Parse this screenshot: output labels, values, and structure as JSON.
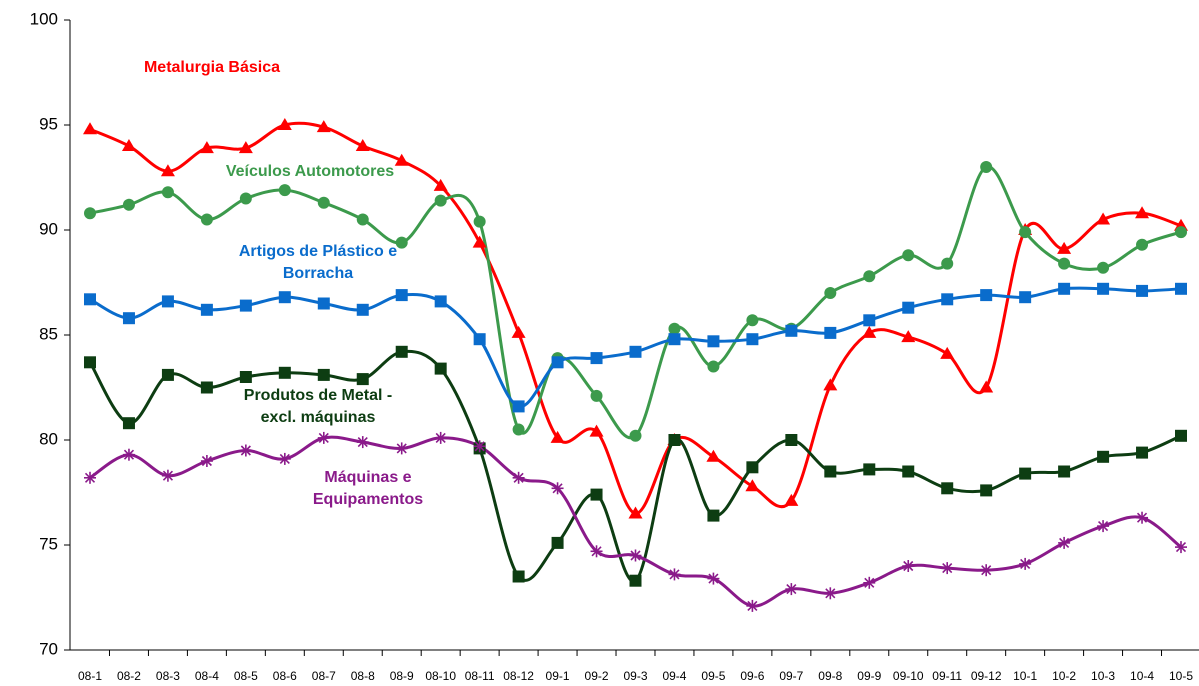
{
  "chart_data": {
    "type": "line",
    "categories": [
      "08-1",
      "08-2",
      "08-3",
      "08-4",
      "08-5",
      "08-6",
      "08-7",
      "08-8",
      "08-9",
      "08-10",
      "08-11",
      "08-12",
      "09-1",
      "09-2",
      "09-3",
      "09-4",
      "09-5",
      "09-6",
      "09-7",
      "09-8",
      "09-9",
      "09-10",
      "09-11",
      "09-12",
      "10-1",
      "10-2",
      "10-3",
      "10-4",
      "10-5"
    ],
    "ylim": [
      70,
      100
    ],
    "yticks": [
      70,
      75,
      80,
      85,
      90,
      95,
      100
    ],
    "grid": false,
    "smooth": true,
    "series": [
      {
        "name": "Metalurgia Básica",
        "color": "#ff0000",
        "marker": "triangle",
        "values": [
          94.8,
          94.0,
          92.8,
          93.9,
          93.9,
          95.0,
          94.9,
          94.0,
          93.3,
          92.1,
          89.4,
          85.1,
          80.1,
          80.4,
          76.5,
          80.0,
          79.2,
          77.8,
          77.1,
          82.6,
          85.1,
          84.9,
          84.1,
          82.5,
          90.0,
          89.1,
          90.5,
          90.8,
          90.2
        ]
      },
      {
        "name": "Veículos Automotores",
        "color": "#3c9a4c",
        "marker": "circle",
        "values": [
          90.8,
          91.2,
          91.8,
          90.5,
          91.5,
          91.9,
          91.3,
          90.5,
          89.4,
          91.4,
          90.4,
          80.5,
          83.9,
          82.1,
          80.2,
          85.3,
          83.5,
          85.7,
          85.3,
          87.0,
          87.8,
          88.8,
          88.4,
          93.0,
          89.9,
          88.4,
          88.2,
          89.3,
          89.9
        ]
      },
      {
        "name": "Artigos de Plástico e Borracha",
        "color": "#0a6ccc",
        "marker": "square",
        "values": [
          86.7,
          85.8,
          86.6,
          86.2,
          86.4,
          86.8,
          86.5,
          86.2,
          86.9,
          86.6,
          84.8,
          81.6,
          83.7,
          83.9,
          84.2,
          84.8,
          84.7,
          84.8,
          85.2,
          85.1,
          85.7,
          86.3,
          86.7,
          86.9,
          86.8,
          87.2,
          87.2,
          87.1,
          87.2
        ]
      },
      {
        "name": "Produtos de Metal - excl. máquinas",
        "color": "#0d3d12",
        "marker": "square",
        "values": [
          83.7,
          80.8,
          83.1,
          82.5,
          83.0,
          83.2,
          83.1,
          82.9,
          84.2,
          83.4,
          79.6,
          73.5,
          75.1,
          77.4,
          73.3,
          80.0,
          76.4,
          78.7,
          80.0,
          78.5,
          78.6,
          78.5,
          77.7,
          77.6,
          78.4,
          78.5,
          79.2,
          79.4,
          80.2
        ]
      },
      {
        "name": "Máquinas e Equipamentos",
        "color": "#8a1a8a",
        "marker": "star",
        "values": [
          78.2,
          79.3,
          78.3,
          79.0,
          79.5,
          79.1,
          80.1,
          79.9,
          79.6,
          80.1,
          79.7,
          78.2,
          77.7,
          74.7,
          74.5,
          73.6,
          73.4,
          72.1,
          72.9,
          72.7,
          73.2,
          74.0,
          73.9,
          73.8,
          74.1,
          75.1,
          75.9,
          76.3,
          74.9
        ]
      }
    ]
  }
}
